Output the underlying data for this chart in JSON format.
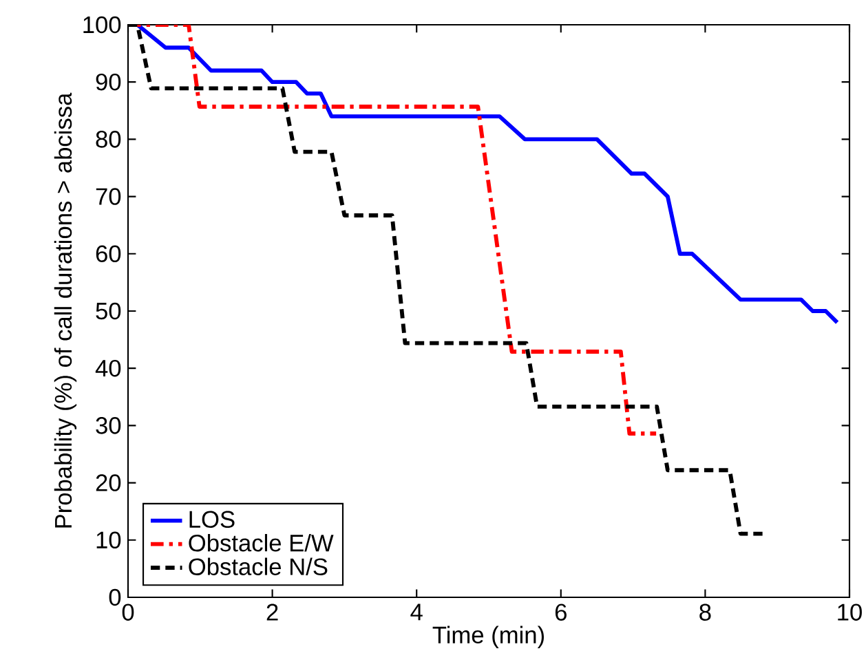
{
  "chart_data": {
    "type": "line",
    "xlabel": "Time (min)",
    "ylabel": "Probability (%) of call durations > abcissa",
    "xlim": [
      0,
      10
    ],
    "ylim": [
      0,
      100
    ],
    "xticks": [
      0,
      2,
      4,
      6,
      8,
      10
    ],
    "yticks": [
      0,
      10,
      20,
      30,
      40,
      50,
      60,
      70,
      80,
      90,
      100
    ],
    "grid": false,
    "legend": "bottom left",
    "marker": "none",
    "series": [
      {
        "name": "LOS",
        "color": "#0000ff",
        "line_style": "solid",
        "x": [
          0,
          0.13,
          0.52,
          0.84,
          1.15,
          1.85,
          2.0,
          2.33,
          2.48,
          2.67,
          2.82,
          5.15,
          5.5,
          6.5,
          6.98,
          7.16,
          7.48,
          7.65,
          7.82,
          8.49,
          9.33,
          9.49,
          9.67,
          9.83
        ],
        "values": [
          100,
          100,
          96,
          96,
          92,
          92,
          90,
          90,
          88,
          88,
          84,
          84,
          80,
          80,
          74,
          74,
          70,
          60,
          60,
          52,
          52,
          50,
          50,
          48
        ]
      },
      {
        "name": "Obstacle E/W",
        "color": "#ff0000",
        "line_style": "dashdot",
        "x": [
          0,
          0.84,
          0.99,
          4.85,
          5.32,
          6.83,
          6.95,
          7.32
        ],
        "values": [
          100,
          100,
          85.7,
          85.7,
          42.9,
          42.9,
          28.6,
          28.6
        ]
      },
      {
        "name": "Obstacle N/S",
        "color": "#000000",
        "line_style": "dashed",
        "x": [
          0,
          0.13,
          0.32,
          2.14,
          2.31,
          2.82,
          3.0,
          3.66,
          3.84,
          5.52,
          5.67,
          7.33,
          7.48,
          8.34,
          8.49,
          8.84
        ],
        "values": [
          100,
          100,
          88.9,
          88.9,
          77.8,
          77.8,
          66.7,
          66.7,
          44.4,
          44.4,
          33.3,
          33.3,
          22.2,
          22.2,
          11.1,
          11.1
        ]
      }
    ]
  }
}
